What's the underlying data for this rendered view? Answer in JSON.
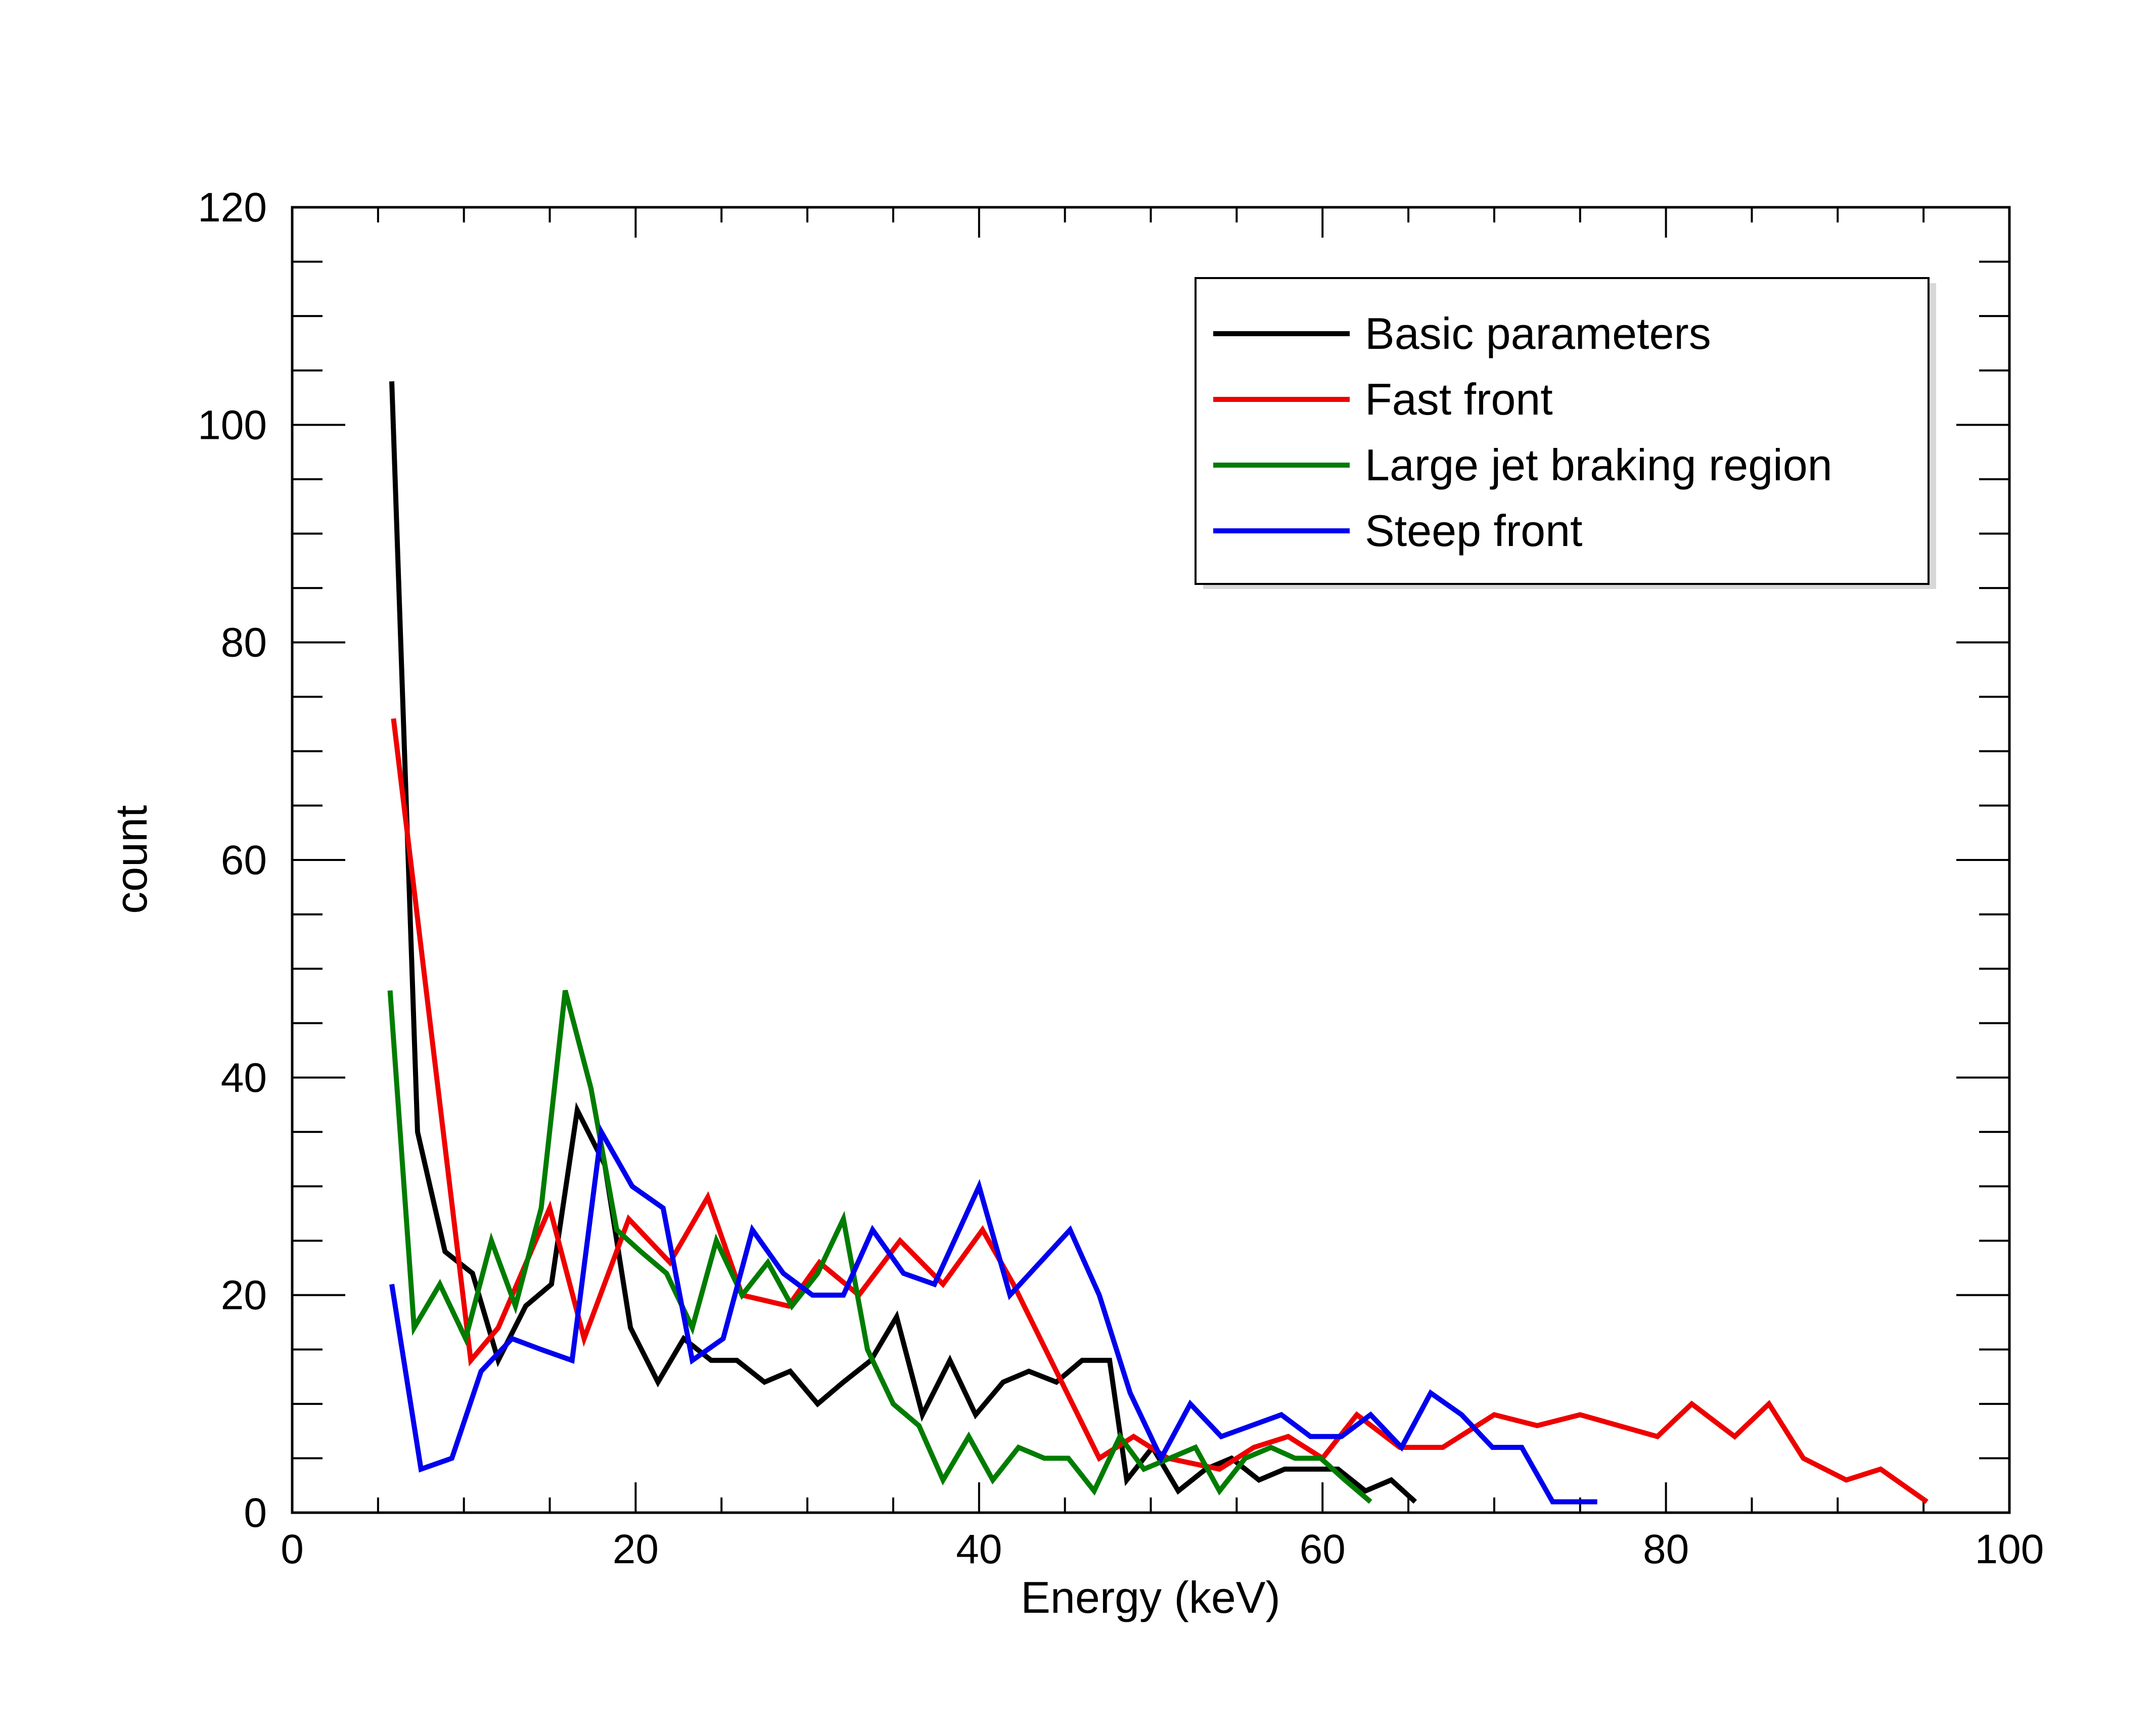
{
  "chart_data": {
    "type": "line",
    "title": "",
    "xlabel": "Energy (keV)",
    "ylabel": "count",
    "xlim": [
      0,
      100
    ],
    "ylim": [
      0,
      120
    ],
    "x_ticks": [
      0,
      20,
      40,
      60,
      80,
      100
    ],
    "y_ticks": [
      0,
      20,
      40,
      60,
      80,
      100,
      120
    ],
    "x_minor_step": 5,
    "y_minor_step": 5,
    "grid": false,
    "legend_position": "top-right",
    "series": [
      {
        "name": "Basic parameters",
        "color": "#000000",
        "points": [
          [
            5.8,
            104
          ],
          [
            7.3,
            35
          ],
          [
            8.9,
            24
          ],
          [
            10.5,
            22
          ],
          [
            12.0,
            14
          ],
          [
            13.6,
            19
          ],
          [
            15.1,
            21
          ],
          [
            16.6,
            37
          ],
          [
            18.2,
            32
          ],
          [
            19.7,
            17
          ],
          [
            21.3,
            12
          ],
          [
            22.8,
            16
          ],
          [
            24.4,
            14
          ],
          [
            25.9,
            14
          ],
          [
            27.5,
            12
          ],
          [
            29.0,
            13
          ],
          [
            30.6,
            10
          ],
          [
            32.1,
            12
          ],
          [
            33.7,
            14
          ],
          [
            35.2,
            18
          ],
          [
            36.7,
            9
          ],
          [
            38.3,
            14
          ],
          [
            39.8,
            9
          ],
          [
            41.4,
            12
          ],
          [
            42.9,
            13
          ],
          [
            44.5,
            12
          ],
          [
            46.0,
            14
          ],
          [
            47.6,
            14
          ],
          [
            48.6,
            3
          ],
          [
            50.1,
            6
          ],
          [
            51.6,
            2
          ],
          [
            53.2,
            4
          ],
          [
            54.7,
            5
          ],
          [
            56.3,
            3
          ],
          [
            57.8,
            4
          ],
          [
            59.4,
            4
          ],
          [
            60.9,
            4
          ],
          [
            62.5,
            2
          ],
          [
            64.0,
            3
          ],
          [
            65.4,
            1
          ]
        ]
      },
      {
        "name": "Fast front",
        "color": "#ee0000",
        "points": [
          [
            5.9,
            73
          ],
          [
            10.4,
            14
          ],
          [
            12.0,
            17
          ],
          [
            15.0,
            28
          ],
          [
            17.0,
            16
          ],
          [
            19.6,
            27
          ],
          [
            22.0,
            23
          ],
          [
            24.2,
            29
          ],
          [
            26.2,
            20
          ],
          [
            28.9,
            19
          ],
          [
            30.7,
            23
          ],
          [
            33.0,
            20
          ],
          [
            35.4,
            25
          ],
          [
            37.9,
            21
          ],
          [
            40.2,
            26
          ],
          [
            42.0,
            21
          ],
          [
            47.0,
            5
          ],
          [
            49.0,
            7
          ],
          [
            51.0,
            5
          ],
          [
            54.0,
            4
          ],
          [
            56.0,
            6
          ],
          [
            58.0,
            7
          ],
          [
            60.0,
            5
          ],
          [
            62.0,
            9
          ],
          [
            64.5,
            6
          ],
          [
            67.0,
            6
          ],
          [
            70.0,
            9
          ],
          [
            72.5,
            8
          ],
          [
            75.0,
            9
          ],
          [
            79.5,
            7
          ],
          [
            81.5,
            10
          ],
          [
            84.0,
            7
          ],
          [
            86.0,
            10
          ],
          [
            88.0,
            5
          ],
          [
            90.5,
            3
          ],
          [
            92.5,
            4
          ],
          [
            95.2,
            1
          ]
        ]
      },
      {
        "name": "Large jet braking region",
        "color": "#007c00",
        "points": [
          [
            5.7,
            48
          ],
          [
            7.1,
            17
          ],
          [
            8.6,
            21
          ],
          [
            10.1,
            16
          ],
          [
            11.6,
            25
          ],
          [
            13.0,
            19
          ],
          [
            14.5,
            28
          ],
          [
            15.9,
            48
          ],
          [
            17.4,
            39
          ],
          [
            18.9,
            26
          ],
          [
            20.3,
            24
          ],
          [
            21.8,
            22
          ],
          [
            23.3,
            17
          ],
          [
            24.7,
            25
          ],
          [
            26.2,
            20
          ],
          [
            27.7,
            23
          ],
          [
            29.1,
            19
          ],
          [
            30.6,
            22
          ],
          [
            32.1,
            27
          ],
          [
            33.5,
            15
          ],
          [
            35.0,
            10
          ],
          [
            36.5,
            8
          ],
          [
            37.9,
            3
          ],
          [
            39.4,
            7
          ],
          [
            40.8,
            3
          ],
          [
            42.3,
            6
          ],
          [
            43.8,
            5
          ],
          [
            45.2,
            5
          ],
          [
            46.7,
            2
          ],
          [
            48.2,
            7
          ],
          [
            49.6,
            4
          ],
          [
            51.1,
            5
          ],
          [
            52.6,
            6
          ],
          [
            54.0,
            2
          ],
          [
            55.5,
            5
          ],
          [
            57.0,
            6
          ],
          [
            58.4,
            5
          ],
          [
            59.9,
            5
          ],
          [
            61.3,
            3
          ],
          [
            62.8,
            1
          ]
        ]
      },
      {
        "name": "Steep front",
        "color": "#0000ee",
        "points": [
          [
            5.8,
            21
          ],
          [
            7.5,
            4
          ],
          [
            9.3,
            5
          ],
          [
            11.0,
            13
          ],
          [
            12.8,
            16
          ],
          [
            14.5,
            15
          ],
          [
            16.3,
            14
          ],
          [
            18.0,
            35
          ],
          [
            19.8,
            30
          ],
          [
            21.6,
            28
          ],
          [
            23.3,
            14
          ],
          [
            25.1,
            16
          ],
          [
            26.8,
            26
          ],
          [
            28.6,
            22
          ],
          [
            30.3,
            20
          ],
          [
            32.1,
            20
          ],
          [
            33.8,
            26
          ],
          [
            35.6,
            22
          ],
          [
            37.4,
            21
          ],
          [
            40.0,
            30
          ],
          [
            41.8,
            20
          ],
          [
            45.3,
            26
          ],
          [
            47.0,
            20
          ],
          [
            48.8,
            11
          ],
          [
            50.6,
            5
          ],
          [
            52.3,
            10
          ],
          [
            54.1,
            7
          ],
          [
            57.6,
            9
          ],
          [
            59.3,
            7
          ],
          [
            61.1,
            7
          ],
          [
            62.8,
            9
          ],
          [
            64.6,
            6
          ],
          [
            66.3,
            11
          ],
          [
            68.1,
            9
          ],
          [
            69.9,
            6
          ],
          [
            71.6,
            6
          ],
          [
            73.4,
            1
          ],
          [
            75.1,
            1
          ],
          [
            76.0,
            1
          ]
        ]
      }
    ]
  }
}
